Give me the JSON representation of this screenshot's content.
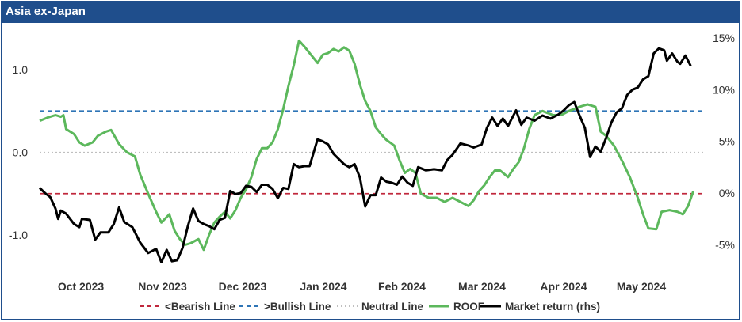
{
  "title": "Asia ex-Japan",
  "chart_data": {
    "type": "line",
    "x_axis": {
      "ticks": [
        "Oct 2023",
        "Nov 2023",
        "Dec 2023",
        "Jan 2024",
        "Feb 2024",
        "Mar 2024",
        "Apr 2024",
        "May 2024"
      ],
      "range": [
        "2023-09-19",
        "2024-05-27"
      ]
    },
    "y_left": {
      "ticks": [
        "1.0",
        "0.0",
        "-1.0"
      ],
      "tick_values": [
        1.0,
        0.0,
        -1.0
      ],
      "range": [
        -1.48,
        1.5
      ]
    },
    "y_right": {
      "ticks": [
        "15%",
        "10%",
        "5%",
        "0%",
        "-5%"
      ],
      "tick_values": [
        15,
        10,
        5,
        0,
        -5
      ],
      "range": [
        -7.2,
        15.6
      ]
    },
    "lines": [
      {
        "name": "<Bearish Line",
        "value": -0.5,
        "axis": "left",
        "color": "#c0283c",
        "style": "dashed"
      },
      {
        "name": ">Bullish Line",
        "value": 0.5,
        "axis": "left",
        "color": "#2e75b6",
        "style": "dashed"
      },
      {
        "name": "Neutral Line",
        "value": 0.0,
        "axis": "left",
        "color": "#bfbfbf",
        "style": "dotted"
      }
    ],
    "series": [
      {
        "name": "ROOF",
        "axis": "left",
        "color": "#5cb85c",
        "points": [
          [
            "2023-09-19",
            0.38
          ],
          [
            "2023-09-22",
            0.42
          ],
          [
            "2023-09-25",
            0.45
          ],
          [
            "2023-09-27",
            0.43
          ],
          [
            "2023-09-28",
            0.45
          ],
          [
            "2023-09-29",
            0.28
          ],
          [
            "2023-10-02",
            0.22
          ],
          [
            "2023-10-04",
            0.12
          ],
          [
            "2023-10-06",
            0.08
          ],
          [
            "2023-10-09",
            0.12
          ],
          [
            "2023-10-11",
            0.2
          ],
          [
            "2023-10-14",
            0.25
          ],
          [
            "2023-10-16",
            0.27
          ],
          [
            "2023-10-19",
            0.1
          ],
          [
            "2023-10-22",
            0.0
          ],
          [
            "2023-10-25",
            -0.05
          ],
          [
            "2023-10-27",
            -0.27
          ],
          [
            "2023-10-30",
            -0.5
          ],
          [
            "2023-11-02",
            -0.72
          ],
          [
            "2023-11-04",
            -0.85
          ],
          [
            "2023-11-07",
            -0.75
          ],
          [
            "2023-11-09",
            -0.95
          ],
          [
            "2023-11-11",
            -1.05
          ],
          [
            "2023-11-13",
            -1.12
          ],
          [
            "2023-11-15",
            -1.1
          ],
          [
            "2023-11-18",
            -1.05
          ],
          [
            "2023-11-20",
            -1.18
          ],
          [
            "2023-11-22",
            -1.0
          ],
          [
            "2023-11-24",
            -0.85
          ],
          [
            "2023-11-26",
            -0.78
          ],
          [
            "2023-11-28",
            -0.72
          ],
          [
            "2023-11-30",
            -0.8
          ],
          [
            "2023-12-02",
            -0.7
          ],
          [
            "2023-12-04",
            -0.55
          ],
          [
            "2023-12-06",
            -0.45
          ],
          [
            "2023-12-08",
            -0.3
          ],
          [
            "2023-12-10",
            -0.08
          ],
          [
            "2023-12-12",
            0.05
          ],
          [
            "2023-12-14",
            0.05
          ],
          [
            "2023-12-16",
            0.12
          ],
          [
            "2023-12-18",
            0.28
          ],
          [
            "2023-12-20",
            0.52
          ],
          [
            "2023-12-22",
            0.8
          ],
          [
            "2023-12-24",
            1.05
          ],
          [
            "2023-12-26",
            1.35
          ],
          [
            "2023-12-28",
            1.28
          ],
          [
            "2023-12-30",
            1.2
          ],
          [
            "2024-01-02",
            1.08
          ],
          [
            "2024-01-04",
            1.18
          ],
          [
            "2024-01-06",
            1.2
          ],
          [
            "2024-01-08",
            1.25
          ],
          [
            "2024-01-10",
            1.22
          ],
          [
            "2024-01-12",
            1.27
          ],
          [
            "2024-01-14",
            1.23
          ],
          [
            "2024-01-16",
            1.07
          ],
          [
            "2024-01-18",
            0.82
          ],
          [
            "2024-01-20",
            0.62
          ],
          [
            "2024-01-22",
            0.5
          ],
          [
            "2024-01-24",
            0.3
          ],
          [
            "2024-01-26",
            0.22
          ],
          [
            "2024-01-28",
            0.15
          ],
          [
            "2024-01-31",
            0.08
          ],
          [
            "2024-02-02",
            -0.1
          ],
          [
            "2024-02-04",
            -0.25
          ],
          [
            "2024-02-06",
            -0.2
          ],
          [
            "2024-02-08",
            -0.25
          ],
          [
            "2024-02-10",
            -0.5
          ],
          [
            "2024-02-13",
            -0.55
          ],
          [
            "2024-02-16",
            -0.55
          ],
          [
            "2024-02-19",
            -0.6
          ],
          [
            "2024-02-22",
            -0.55
          ],
          [
            "2024-02-25",
            -0.6
          ],
          [
            "2024-02-28",
            -0.65
          ],
          [
            "2024-03-01",
            -0.58
          ],
          [
            "2024-03-03",
            -0.47
          ],
          [
            "2024-03-05",
            -0.4
          ],
          [
            "2024-03-07",
            -0.3
          ],
          [
            "2024-03-09",
            -0.22
          ],
          [
            "2024-03-11",
            -0.22
          ],
          [
            "2024-03-14",
            -0.3
          ],
          [
            "2024-03-16",
            -0.2
          ],
          [
            "2024-03-18",
            -0.12
          ],
          [
            "2024-03-20",
            0.05
          ],
          [
            "2024-03-22",
            0.28
          ],
          [
            "2024-03-24",
            0.45
          ],
          [
            "2024-03-27",
            0.5
          ],
          [
            "2024-03-31",
            0.45
          ],
          [
            "2024-04-03",
            0.45
          ],
          [
            "2024-04-06",
            0.5
          ],
          [
            "2024-04-10",
            0.55
          ],
          [
            "2024-04-13",
            0.58
          ],
          [
            "2024-04-16",
            0.55
          ],
          [
            "2024-04-18",
            0.25
          ],
          [
            "2024-04-20",
            0.2
          ],
          [
            "2024-04-23",
            0.08
          ],
          [
            "2024-04-26",
            -0.1
          ],
          [
            "2024-04-29",
            -0.3
          ],
          [
            "2024-05-02",
            -0.55
          ],
          [
            "2024-05-04",
            -0.75
          ],
          [
            "2024-05-06",
            -0.92
          ],
          [
            "2024-05-09",
            -0.93
          ],
          [
            "2024-05-11",
            -0.72
          ],
          [
            "2024-05-14",
            -0.7
          ],
          [
            "2024-05-17",
            -0.72
          ],
          [
            "2024-05-19",
            -0.75
          ],
          [
            "2024-05-21",
            -0.65
          ],
          [
            "2024-05-23",
            -0.47
          ]
        ]
      },
      {
        "name": "Market return (rhs)",
        "axis": "right",
        "color": "#000000",
        "points": [
          [
            "2023-09-19",
            0.5
          ],
          [
            "2023-09-21",
            0.0
          ],
          [
            "2023-09-23",
            -0.4
          ],
          [
            "2023-09-25",
            -1.5
          ],
          [
            "2023-09-26",
            -2.5
          ],
          [
            "2023-09-27",
            -1.7
          ],
          [
            "2023-09-29",
            -2.0
          ],
          [
            "2023-10-02",
            -3.0
          ],
          [
            "2023-10-04",
            -3.3
          ],
          [
            "2023-10-05",
            -2.5
          ],
          [
            "2023-10-08",
            -2.6
          ],
          [
            "2023-10-10",
            -4.5
          ],
          [
            "2023-10-12",
            -3.8
          ],
          [
            "2023-10-15",
            -3.8
          ],
          [
            "2023-10-17",
            -3.0
          ],
          [
            "2023-10-19",
            -1.4
          ],
          [
            "2023-10-21",
            -2.8
          ],
          [
            "2023-10-24",
            -3.3
          ],
          [
            "2023-10-27",
            -4.8
          ],
          [
            "2023-10-30",
            -5.8
          ],
          [
            "2023-11-02",
            -5.4
          ],
          [
            "2023-11-04",
            -6.7
          ],
          [
            "2023-11-06",
            -5.5
          ],
          [
            "2023-11-08",
            -6.6
          ],
          [
            "2023-11-10",
            -6.5
          ],
          [
            "2023-11-12",
            -5.3
          ],
          [
            "2023-11-14",
            -3.2
          ],
          [
            "2023-11-16",
            -1.5
          ],
          [
            "2023-11-18",
            -2.7
          ],
          [
            "2023-11-20",
            -3.0
          ],
          [
            "2023-11-22",
            -3.2
          ],
          [
            "2023-11-24",
            -3.5
          ],
          [
            "2023-11-26",
            -2.6
          ],
          [
            "2023-11-28",
            -2.4
          ],
          [
            "2023-11-30",
            0.2
          ],
          [
            "2023-12-02",
            -0.1
          ],
          [
            "2023-12-04",
            0.0
          ],
          [
            "2023-12-06",
            0.7
          ],
          [
            "2023-12-08",
            0.6
          ],
          [
            "2023-12-10",
            0.1
          ],
          [
            "2023-12-12",
            0.8
          ],
          [
            "2023-12-14",
            0.8
          ],
          [
            "2023-12-16",
            0.4
          ],
          [
            "2023-12-18",
            -0.5
          ],
          [
            "2023-12-20",
            0.5
          ],
          [
            "2023-12-22",
            0.4
          ],
          [
            "2023-12-24",
            2.8
          ],
          [
            "2023-12-26",
            2.5
          ],
          [
            "2023-12-28",
            2.6
          ],
          [
            "2023-12-30",
            2.6
          ],
          [
            "2024-01-02",
            5.2
          ],
          [
            "2024-01-04",
            5.0
          ],
          [
            "2024-01-06",
            4.7
          ],
          [
            "2024-01-08",
            3.8
          ],
          [
            "2024-01-10",
            3.3
          ],
          [
            "2024-01-12",
            2.8
          ],
          [
            "2024-01-14",
            2.5
          ],
          [
            "2024-01-16",
            2.8
          ],
          [
            "2024-01-18",
            1.5
          ],
          [
            "2024-01-20",
            -1.3
          ],
          [
            "2024-01-22",
            -0.2
          ],
          [
            "2024-01-24",
            -0.2
          ],
          [
            "2024-01-26",
            1.5
          ],
          [
            "2024-01-28",
            1.1
          ],
          [
            "2024-01-30",
            1.0
          ],
          [
            "2024-02-01",
            0.8
          ],
          [
            "2024-02-03",
            1.6
          ],
          [
            "2024-02-05",
            1.0
          ],
          [
            "2024-02-07",
            0.7
          ],
          [
            "2024-02-09",
            2.5
          ],
          [
            "2024-02-12",
            2.2
          ],
          [
            "2024-02-15",
            2.3
          ],
          [
            "2024-02-18",
            2.2
          ],
          [
            "2024-02-20",
            3.2
          ],
          [
            "2024-02-22",
            3.7
          ],
          [
            "2024-02-25",
            4.8
          ],
          [
            "2024-02-28",
            4.6
          ],
          [
            "2024-03-01",
            4.4
          ],
          [
            "2024-03-04",
            4.7
          ],
          [
            "2024-03-06",
            6.3
          ],
          [
            "2024-03-08",
            7.3
          ],
          [
            "2024-03-10",
            6.5
          ],
          [
            "2024-03-12",
            7.2
          ],
          [
            "2024-03-14",
            6.5
          ],
          [
            "2024-03-17",
            8.0
          ],
          [
            "2024-03-19",
            6.6
          ],
          [
            "2024-03-21",
            7.3
          ],
          [
            "2024-03-24",
            7.0
          ],
          [
            "2024-03-27",
            7.5
          ],
          [
            "2024-03-30",
            7.2
          ],
          [
            "2024-04-02",
            7.6
          ],
          [
            "2024-04-04",
            8.0
          ],
          [
            "2024-04-06",
            8.5
          ],
          [
            "2024-04-08",
            8.8
          ],
          [
            "2024-04-10",
            7.5
          ],
          [
            "2024-04-12",
            6.3
          ],
          [
            "2024-04-14",
            3.5
          ],
          [
            "2024-04-16",
            4.5
          ],
          [
            "2024-04-18",
            4.0
          ],
          [
            "2024-04-20",
            5.3
          ],
          [
            "2024-04-22",
            6.8
          ],
          [
            "2024-04-24",
            7.8
          ],
          [
            "2024-04-26",
            8.2
          ],
          [
            "2024-04-28",
            9.5
          ],
          [
            "2024-04-30",
            10.0
          ],
          [
            "2024-05-02",
            10.2
          ],
          [
            "2024-05-04",
            11.0
          ],
          [
            "2024-05-06",
            11.3
          ],
          [
            "2024-05-08",
            13.5
          ],
          [
            "2024-05-10",
            14.0
          ],
          [
            "2024-05-12",
            13.8
          ],
          [
            "2024-05-13",
            12.8
          ],
          [
            "2024-05-15",
            13.5
          ],
          [
            "2024-05-17",
            12.7
          ],
          [
            "2024-05-18",
            12.5
          ],
          [
            "2024-05-20",
            13.3
          ],
          [
            "2024-05-22",
            12.3
          ]
        ]
      }
    ],
    "legend": {
      "placement": "bottom",
      "items": [
        {
          "label": "<Bearish Line",
          "color": "#c0283c",
          "style": "dashed"
        },
        {
          "label": ">Bullish Line",
          "color": "#2e75b6",
          "style": "dashed"
        },
        {
          "label": "Neutral Line",
          "color": "#bfbfbf",
          "style": "dotted"
        },
        {
          "label": "ROOF",
          "color": "#5cb85c",
          "style": "solid"
        },
        {
          "label": "Market return (rhs)",
          "color": "#000000",
          "style": "solid"
        }
      ]
    }
  }
}
